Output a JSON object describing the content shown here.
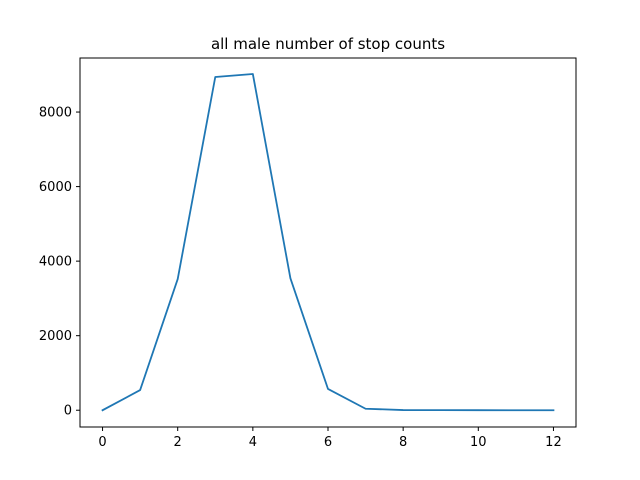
{
  "chart_data": {
    "type": "line",
    "title": "all male number of stop counts",
    "xlabel": "",
    "ylabel": "",
    "xlim": [
      -0.6,
      12.6
    ],
    "ylim": [
      -450,
      9450
    ],
    "xticks": [
      0,
      2,
      4,
      6,
      8,
      10,
      12
    ],
    "yticks": [
      0,
      2000,
      4000,
      6000,
      8000
    ],
    "grid": false,
    "series": [
      {
        "x": [
          0,
          1,
          2,
          3,
          4,
          5,
          6,
          7,
          8,
          9,
          10,
          11,
          12
        ],
        "values": [
          0,
          540,
          3520,
          8940,
          9020,
          3540,
          570,
          40,
          5,
          2,
          1,
          0,
          0
        ],
        "color": "#1f77b4"
      }
    ]
  }
}
